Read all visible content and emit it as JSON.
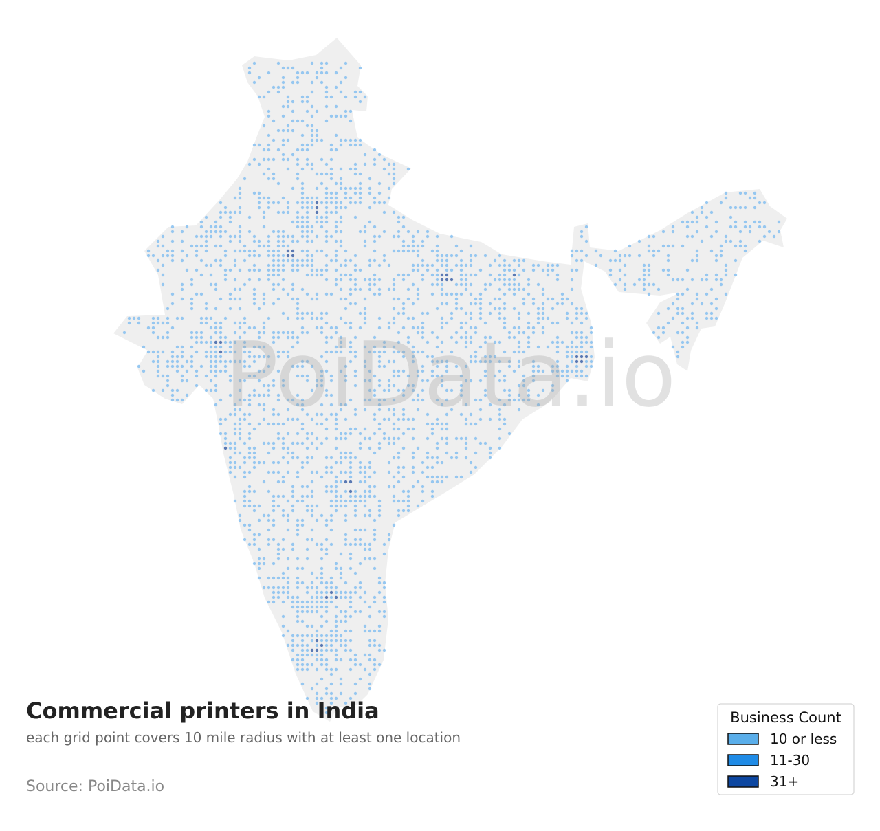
{
  "title": "Commercial printers in India",
  "subtitle": "each grid point covers 10 mile radius with at least one location",
  "source": "Source: PoiData.io",
  "watermark": "PoiData.io",
  "legend": {
    "title": "Business Count",
    "items": [
      {
        "label": "10 or less",
        "color": "#5aaeea"
      },
      {
        "label": "11-30",
        "color": "#1f8be6"
      },
      {
        "label": "31+",
        "color": "#0d47a1"
      }
    ]
  }
}
